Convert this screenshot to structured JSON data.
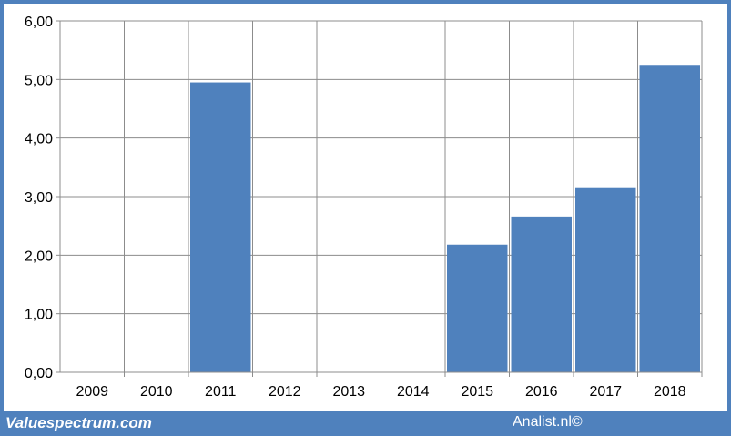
{
  "chart_data": {
    "type": "bar",
    "categories": [
      "2009",
      "2010",
      "2011",
      "2012",
      "2013",
      "2014",
      "2015",
      "2016",
      "2017",
      "2018"
    ],
    "values": [
      null,
      null,
      4.95,
      null,
      null,
      null,
      2.18,
      2.66,
      3.16,
      5.25
    ],
    "ylim": [
      0,
      6
    ],
    "yticks": [
      "0,00",
      "1,00",
      "2,00",
      "3,00",
      "4,00",
      "5,00",
      "6,00"
    ],
    "grid": true,
    "colors": {
      "bar": "#4f81bd",
      "grid": "#8c8c8c",
      "frame": "#4f81bd"
    }
  },
  "footer": {
    "left": "Valuespectrum.com",
    "right": "Analist.nl©"
  }
}
